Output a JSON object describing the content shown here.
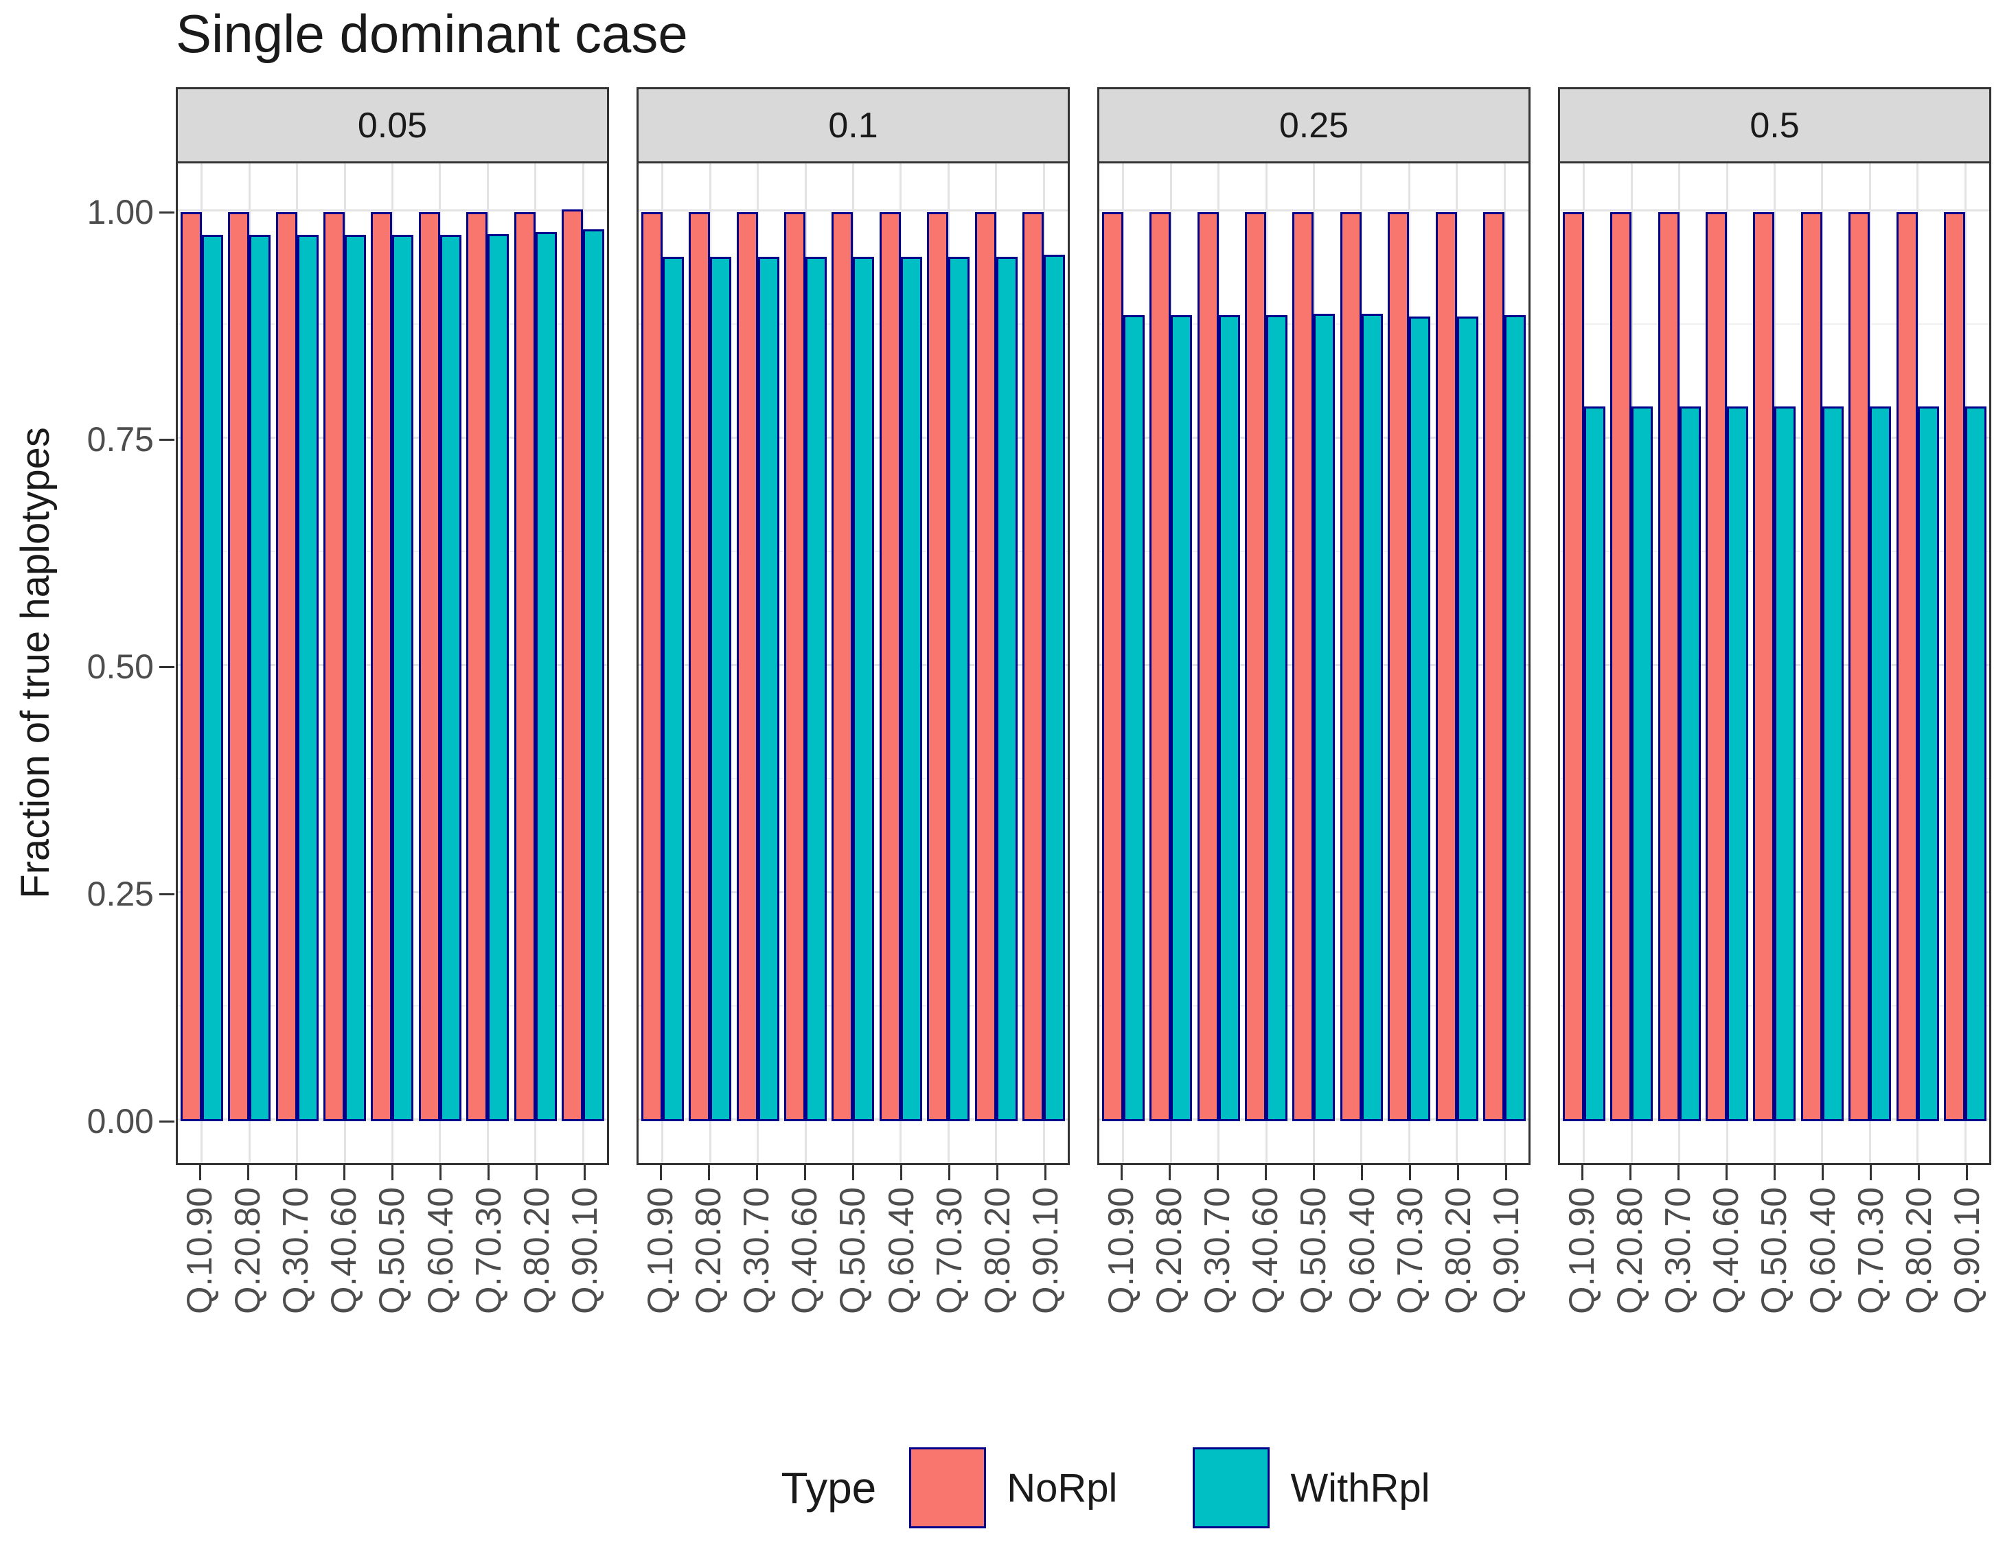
{
  "title": "Single dominant case",
  "y_axis": {
    "title": "Fraction of true haplotypes",
    "tick_labels": [
      "1.00",
      "0.75",
      "0.50",
      "0.25",
      "0.00"
    ],
    "tick_values": [
      1.0,
      0.75,
      0.5,
      0.25,
      0.0
    ]
  },
  "x_axis": {
    "tick_labels": [
      "Q.10.90",
      "Q.20.80",
      "Q.30.70",
      "Q.40.60",
      "Q.50.50",
      "Q.60.40",
      "Q.70.30",
      "Q.80.20",
      "Q.90.10"
    ]
  },
  "legend": {
    "title": "Type",
    "items": [
      {
        "label": "NoRpl",
        "color": "#f8766d"
      },
      {
        "label": "WithRpl",
        "color": "#00bfc4"
      }
    ]
  },
  "colors": {
    "norpl_fill": "#f8766d",
    "withrpl_fill": "#00bfc4",
    "bar_border": "#00008b",
    "strip_background": "#d9d9d9",
    "panel_border": "#333333",
    "grid_major": "#e3e3e3",
    "grid_minor": "#f0f0f0",
    "axis_text": "#4d4d4d",
    "text": "#1a1a1a"
  },
  "chart_data": {
    "type": "bar",
    "title": "Single dominant case",
    "xlabel": "",
    "ylabel": "Fraction of true haplotypes",
    "ylim": [
      0,
      1.05
    ],
    "y_major_ticks": [
      0,
      0.25,
      0.5,
      0.75,
      1.0
    ],
    "y_minor_gridlines": [
      0.125,
      0.375,
      0.625,
      0.875
    ],
    "grid": true,
    "legend_position": "bottom",
    "bar_mode": "dodged",
    "categories": [
      "Q.10.90",
      "Q.20.80",
      "Q.30.70",
      "Q.40.60",
      "Q.50.50",
      "Q.60.40",
      "Q.70.30",
      "Q.80.20",
      "Q.90.10"
    ],
    "facet_labels": [
      "0.05",
      "0.1",
      "0.25",
      "0.5"
    ],
    "facets": [
      {
        "label": "0.05",
        "series": [
          {
            "name": "NoRpl",
            "values": [
              1.0,
              1.0,
              1.0,
              1.0,
              1.0,
              1.0,
              1.0,
              1.0,
              1.003
            ]
          },
          {
            "name": "WithRpl",
            "values": [
              0.975,
              0.975,
              0.975,
              0.975,
              0.975,
              0.975,
              0.976,
              0.978,
              0.981
            ]
          }
        ]
      },
      {
        "label": "0.1",
        "series": [
          {
            "name": "NoRpl",
            "values": [
              1.0,
              1.0,
              1.0,
              1.0,
              1.0,
              1.0,
              1.0,
              1.0,
              1.0
            ]
          },
          {
            "name": "WithRpl",
            "values": [
              0.951,
              0.951,
              0.951,
              0.951,
              0.951,
              0.951,
              0.951,
              0.951,
              0.953
            ]
          }
        ]
      },
      {
        "label": "0.25",
        "series": [
          {
            "name": "NoRpl",
            "values": [
              1.0,
              1.0,
              1.0,
              1.0,
              1.0,
              1.0,
              1.0,
              1.0,
              1.0
            ]
          },
          {
            "name": "WithRpl",
            "values": [
              0.887,
              0.887,
              0.887,
              0.887,
              0.888,
              0.888,
              0.885,
              0.885,
              0.887
            ]
          }
        ]
      },
      {
        "label": "0.5",
        "series": [
          {
            "name": "NoRpl",
            "values": [
              1.0,
              1.0,
              1.0,
              1.0,
              1.0,
              1.0,
              1.0,
              1.0,
              1.0
            ]
          },
          {
            "name": "WithRpl",
            "values": [
              0.786,
              0.786,
              0.786,
              0.786,
              0.786,
              0.786,
              0.786,
              0.786,
              0.786
            ]
          }
        ]
      }
    ]
  }
}
